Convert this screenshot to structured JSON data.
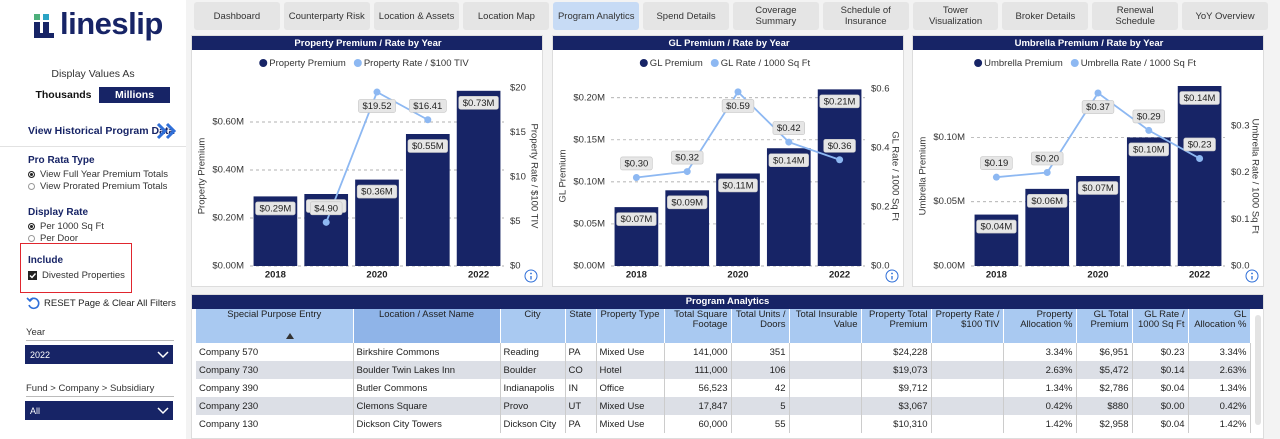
{
  "sidebar": {
    "logo": "lineslip",
    "display_label": "Display Values As",
    "units_options": [
      "Thousands",
      "Millions"
    ],
    "units_selected": 1,
    "historical_link": "View Historical Program Data",
    "pro_rata": {
      "title": "Pro Rata Type",
      "options": [
        "View Full Year Premium Totals",
        "View Prorated Premium Totals"
      ],
      "selected": 0
    },
    "display_rate": {
      "title": "Display Rate",
      "options": [
        "Per 1000 Sq Ft",
        "Per Door"
      ],
      "selected": 0
    },
    "include": {
      "title": "Include",
      "options": [
        "Divested Properties"
      ],
      "checked": [
        true
      ]
    },
    "reset": "RESET Page & Clear All Filters",
    "year": {
      "label": "Year",
      "value": "2022"
    },
    "fund": {
      "label": "Fund > Company > Subsidiary",
      "value": "All"
    }
  },
  "tabs": [
    "Dashboard",
    "Counterparty Risk",
    "Location & Assets",
    "Location Map",
    "Program Analytics",
    "Spend Details",
    "Coverage Summary",
    "Schedule of Insurance",
    "Tower Visualization",
    "Broker Details",
    "Renewal Schedule",
    "YoY Overview"
  ],
  "active_tab": 4,
  "chart_data": [
    {
      "type": "combo",
      "title": "Property Premium / Rate by Year",
      "categories": [
        "2018",
        null,
        "2020",
        null,
        "2022"
      ],
      "series": [
        {
          "name": "Property Premium",
          "type": "bar",
          "color": "#172466",
          "values": [
            0.29,
            0.3,
            0.36,
            0.55,
            0.73
          ],
          "value_labels": [
            "$0.29M",
            "$0.30M",
            "$0.36M",
            "$0.55M",
            "$0.73M"
          ]
        },
        {
          "name": "Property Rate / $100 TIV",
          "type": "line",
          "axis": "y2",
          "color": "#8db8f2",
          "values": [
            null,
            4.9,
            19.52,
            16.41,
            null
          ],
          "value_labels": [
            null,
            "$4.90",
            "$19.52",
            "$16.41",
            null
          ]
        }
      ],
      "ylabel": "Property Premium",
      "y2label": "Property Rate / $100 TIV",
      "ylim": [
        0,
        0.75
      ],
      "yticks": [
        {
          "value": 0,
          "label": "$0.00M"
        },
        {
          "value": 0.2,
          "label": "$0.20M"
        },
        {
          "value": 0.4,
          "label": "$0.40M"
        },
        {
          "value": 0.6,
          "label": "$0.60M"
        }
      ],
      "y2lim": [
        0,
        20.2
      ],
      "y2ticks": [
        {
          "value": 0,
          "label": "$0"
        },
        {
          "value": 5,
          "label": "$5"
        },
        {
          "value": 10,
          "label": "$10"
        },
        {
          "value": 15,
          "label": "$15"
        },
        {
          "value": 20,
          "label": "$20"
        }
      ],
      "grid": true
    },
    {
      "type": "combo",
      "title": "GL Premium / Rate by Year",
      "categories": [
        "2018",
        null,
        "2020",
        null,
        "2022"
      ],
      "series": [
        {
          "name": "GL Premium",
          "type": "bar",
          "color": "#172466",
          "values": [
            0.07,
            0.09,
            0.11,
            0.14,
            0.21
          ],
          "value_labels": [
            "$0.07M",
            "$0.09M",
            "$0.11M",
            "$0.14M",
            "$0.21M"
          ]
        },
        {
          "name": "GL Rate / 1000 Sq Ft",
          "type": "line",
          "axis": "y2",
          "color": "#8db8f2",
          "values": [
            0.3,
            0.32,
            0.59,
            0.42,
            0.36
          ],
          "value_labels": [
            "$0.30",
            "$0.32",
            "$0.59",
            "$0.42",
            "$0.36"
          ]
        }
      ],
      "ylabel": "GL Premium",
      "y2label": "GL Rate / 1000 Sq Ft",
      "ylim": [
        0,
        0.214
      ],
      "yticks": [
        {
          "value": 0,
          "label": "$0.00M"
        },
        {
          "value": 0.05,
          "label": "$0.05M"
        },
        {
          "value": 0.1,
          "label": "$0.10M"
        },
        {
          "value": 0.15,
          "label": "$0.15M"
        },
        {
          "value": 0.2,
          "label": "$0.20M"
        }
      ],
      "y2lim": [
        0,
        0.61
      ],
      "y2ticks": [
        {
          "value": 0,
          "label": "$0.0"
        },
        {
          "value": 0.2,
          "label": "$0.2"
        },
        {
          "value": 0.4,
          "label": "$0.4"
        },
        {
          "value": 0.6,
          "label": "$0.6"
        }
      ],
      "grid": true
    },
    {
      "type": "combo",
      "title": "Umbrella Premium / Rate by Year",
      "categories": [
        "2018",
        null,
        "2020",
        null,
        "2022"
      ],
      "series": [
        {
          "name": "Umbrella Premium",
          "type": "bar",
          "color": "#172466",
          "values": [
            0.04,
            0.06,
            0.07,
            0.1,
            0.14
          ],
          "value_labels": [
            "$0.04M",
            "$0.06M",
            "$0.07M",
            "$0.10M",
            "$0.14M"
          ]
        },
        {
          "name": "Umbrella Rate / 1000 Sq Ft",
          "type": "line",
          "axis": "y2",
          "color": "#8db8f2",
          "values": [
            0.19,
            0.2,
            0.37,
            0.29,
            0.23
          ],
          "value_labels": [
            "$0.19",
            "$0.20",
            "$0.37",
            "$0.29",
            "$0.23"
          ]
        }
      ],
      "ylabel": "Umbrella Premium",
      "y2label": "Umbrella Rate / 1000 Sq Ft",
      "ylim": [
        0,
        0.14
      ],
      "yticks": [
        {
          "value": 0,
          "label": "$0.00M"
        },
        {
          "value": 0.05,
          "label": "$0.05M"
        },
        {
          "value": 0.1,
          "label": "$0.10M"
        }
      ],
      "y2lim": [
        0,
        0.385
      ],
      "y2ticks": [
        {
          "value": 0,
          "label": "$0.0"
        },
        {
          "value": 0.1,
          "label": "$0.1"
        },
        {
          "value": 0.2,
          "label": "$0.2"
        },
        {
          "value": 0.3,
          "label": "$0.3"
        }
      ],
      "grid": true
    }
  ],
  "table": {
    "title": "Program Analytics",
    "columns": [
      "Special Purpose Entry",
      "Location / Asset Name",
      "City",
      "State",
      "Property Type",
      "Total Square Footage",
      "Total Units / Doors",
      "Total Insurable Value",
      "Property Total Premium",
      "Property Rate / $100 TIV",
      "Property Allocation %",
      "GL Total Premium",
      "GL Rate / 1000 Sq Ft",
      "GL Allocation %"
    ],
    "sorted_column": 1,
    "rows": [
      [
        "Company 570",
        "Birkshire Commons",
        "Reading",
        "PA",
        "Mixed Use",
        "141,000",
        "351",
        null,
        "$24,228",
        null,
        "3.34%",
        "$6,951",
        "$0.23",
        "3.34%"
      ],
      [
        "Company 730",
        "Boulder Twin Lakes Inn",
        "Boulder",
        "CO",
        "Hotel",
        "111,000",
        "106",
        null,
        "$19,073",
        null,
        "2.63%",
        "$5,472",
        "$0.14",
        "2.63%"
      ],
      [
        "Company 390",
        "Butler Commons",
        "Indianapolis",
        "IN",
        "Office",
        "56,523",
        "42",
        null,
        "$9,712",
        null,
        "1.34%",
        "$2,786",
        "$0.04",
        "1.34%"
      ],
      [
        "Company 230",
        "Clemons Square",
        "Provo",
        "UT",
        "Mixed Use",
        "17,847",
        "5",
        null,
        "$3,067",
        null,
        "0.42%",
        "$880",
        "$0.00",
        "0.42%"
      ],
      [
        "Company 130",
        "Dickson City Towers",
        "Dickson City",
        "PA",
        "Mixed Use",
        "60,000",
        "55",
        null,
        "$10,310",
        null,
        "1.42%",
        "$2,958",
        "$0.04",
        "1.42%"
      ]
    ]
  }
}
